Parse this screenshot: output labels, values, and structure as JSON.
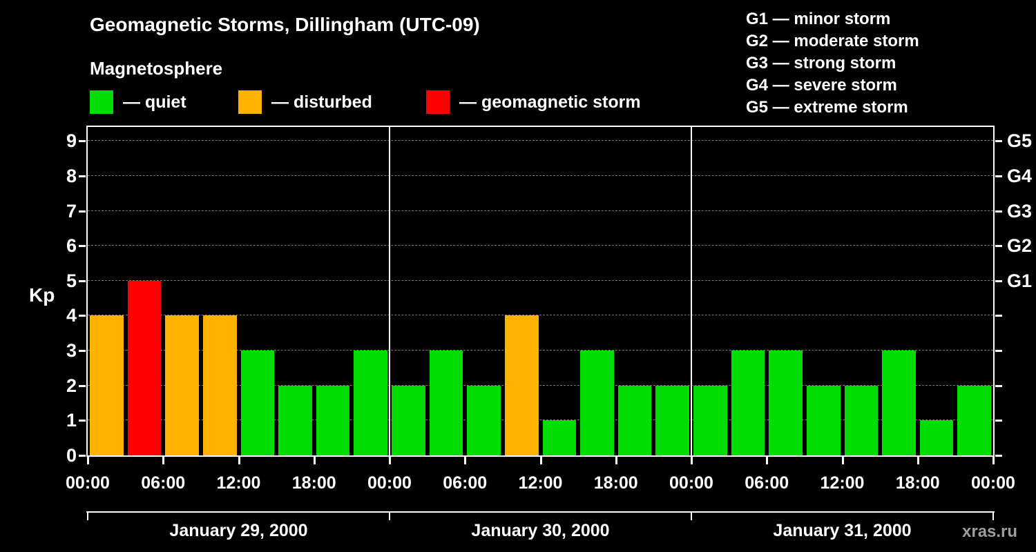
{
  "title": "Geomagnetic Storms, Dillingham (UTC-09)",
  "legend": {
    "heading": "Magnetosphere",
    "items": [
      {
        "key": "quiet",
        "label": "— quiet",
        "color": "#00dd00"
      },
      {
        "key": "disturbed",
        "label": "— disturbed",
        "color": "#ffb300"
      },
      {
        "key": "storm",
        "label": "— geomagnetic storm",
        "color": "#ff0000"
      }
    ]
  },
  "storm_scale": [
    {
      "label": "G1 — minor storm"
    },
    {
      "label": "G2 — moderate storm"
    },
    {
      "label": "G3 — strong storm"
    },
    {
      "label": "G4 — severe storm"
    },
    {
      "label": "G5 — extreme storm"
    }
  ],
  "watermark": "xras.ru",
  "chart_data": {
    "type": "bar",
    "title": "Geomagnetic Storms, Dillingham (UTC-09)",
    "ylabel": "Kp",
    "ylim": [
      0,
      9.4
    ],
    "yticks": [
      0,
      1,
      2,
      3,
      4,
      5,
      6,
      7,
      8,
      9
    ],
    "right_ticks": [
      {
        "kp": 5,
        "label": "G1"
      },
      {
        "kp": 6,
        "label": "G2"
      },
      {
        "kp": 7,
        "label": "G3"
      },
      {
        "kp": 8,
        "label": "G4"
      },
      {
        "kp": 9,
        "label": "G5"
      }
    ],
    "x_tick_labels": [
      "00:00",
      "06:00",
      "12:00",
      "18:00",
      "00:00",
      "06:00",
      "12:00",
      "18:00",
      "00:00",
      "06:00",
      "12:00",
      "18:00",
      "00:00"
    ],
    "hours_total": 72,
    "hours_per_bar": 3,
    "grid": true,
    "color_map": {
      "quiet": "#00dd00",
      "disturbed": "#ffb300",
      "storm": "#ff0000"
    },
    "days": [
      {
        "date": "January 29, 2000",
        "values": [
          4,
          5,
          4,
          4,
          3,
          2,
          2,
          3
        ],
        "colors": [
          "disturbed",
          "storm",
          "disturbed",
          "disturbed",
          "quiet",
          "quiet",
          "quiet",
          "quiet"
        ]
      },
      {
        "date": "January 30, 2000",
        "values": [
          2,
          3,
          2,
          4,
          1,
          3,
          2,
          2
        ],
        "colors": [
          "quiet",
          "quiet",
          "quiet",
          "disturbed",
          "quiet",
          "quiet",
          "quiet",
          "quiet"
        ]
      },
      {
        "date": "January 31, 2000",
        "values": [
          2,
          3,
          3,
          2,
          2,
          3,
          1,
          2
        ],
        "colors": [
          "quiet",
          "quiet",
          "quiet",
          "quiet",
          "quiet",
          "quiet",
          "quiet",
          "quiet"
        ]
      }
    ]
  }
}
